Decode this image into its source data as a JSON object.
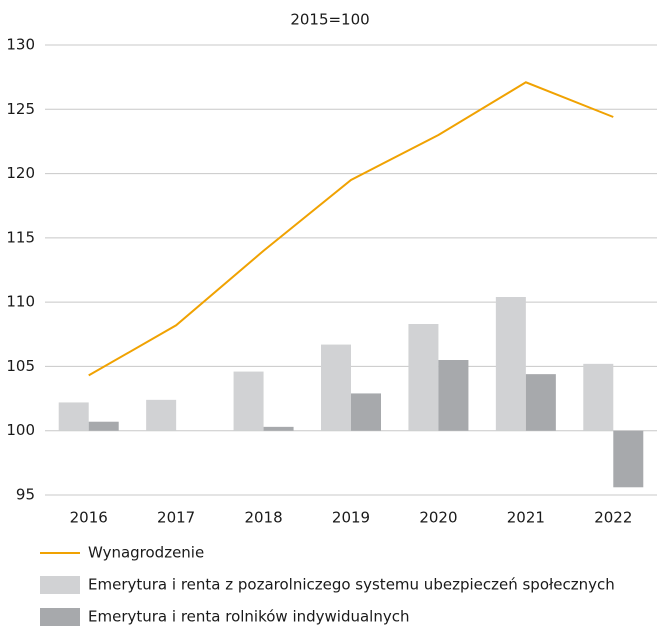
{
  "chart_data": {
    "type": "bar-line",
    "subtitle": "2015=100",
    "categories": [
      "2016",
      "2017",
      "2018",
      "2019",
      "2020",
      "2021",
      "2022"
    ],
    "series": [
      {
        "name": "Wynagrodzenie",
        "kind": "line",
        "color": "#f0a202",
        "values": [
          104.3,
          108.2,
          114.0,
          119.5,
          123.0,
          127.1,
          124.4
        ]
      },
      {
        "name": "Emerytura i renta z pozarolniczego systemu ubezpieczeń społecznych",
        "kind": "bar",
        "color": "#d1d2d4",
        "values": [
          102.2,
          102.4,
          104.6,
          106.7,
          108.3,
          110.4,
          105.2
        ]
      },
      {
        "name": "Emerytura i renta rolników indywidualnych",
        "kind": "bar",
        "color": "#a7a9ac",
        "values": [
          100.7,
          100.0,
          100.3,
          102.9,
          105.5,
          104.4,
          95.6
        ]
      }
    ],
    "ylim": [
      95,
      130
    ],
    "yticks": [
      95,
      100,
      105,
      110,
      115,
      120,
      125,
      130
    ],
    "bar_base": 100,
    "grid": true
  }
}
